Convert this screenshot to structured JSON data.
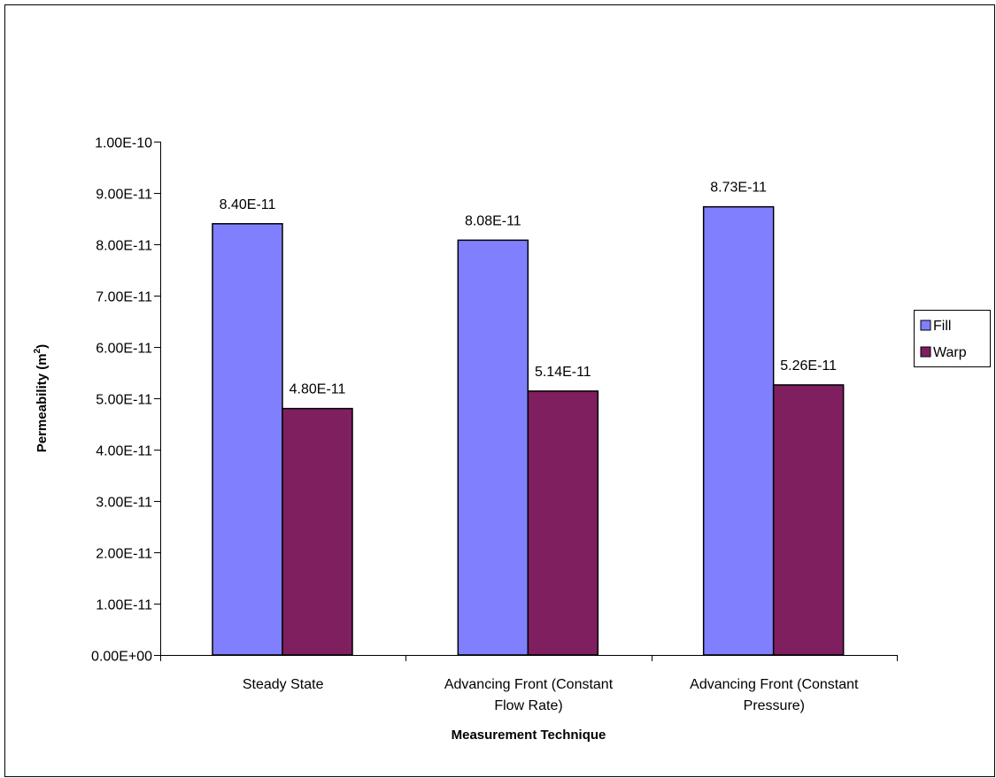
{
  "chart_data": {
    "type": "bar",
    "categories": [
      [
        "Steady State"
      ],
      [
        "Advancing Front (Constant",
        "Flow Rate)"
      ],
      [
        "Advancing Front (Constant",
        "Pressure)"
      ]
    ],
    "series": [
      {
        "name": "Fill",
        "color": "#8080ff",
        "values": [
          8.4e-11,
          8.08e-11,
          8.73e-11
        ],
        "labels": [
          "8.40E-11",
          "8.08E-11",
          "8.73E-11"
        ]
      },
      {
        "name": "Warp",
        "color": "#7f1f5f",
        "values": [
          4.8e-11,
          5.14e-11,
          5.26e-11
        ],
        "labels": [
          "4.80E-11",
          "5.14E-11",
          "5.26E-11"
        ]
      }
    ],
    "title": "",
    "xlabel": "Measurement Technique",
    "ylabel_main": "Permeability (m",
    "ylabel_sup": "2",
    "ylabel_end": ")",
    "ylim": [
      0,
      1e-10
    ],
    "y_ticks": [
      0,
      1e-11,
      2e-11,
      3e-11,
      4e-11,
      5e-11,
      6e-11,
      7e-11,
      8e-11,
      9e-11,
      1e-10
    ],
    "y_tick_labels": [
      "0.00E+00",
      "1.00E-11",
      "2.00E-11",
      "3.00E-11",
      "4.00E-11",
      "5.00E-11",
      "6.00E-11",
      "7.00E-11",
      "8.00E-11",
      "9.00E-11",
      "1.00E-10"
    ],
    "grid": false,
    "legend_position": "right"
  }
}
